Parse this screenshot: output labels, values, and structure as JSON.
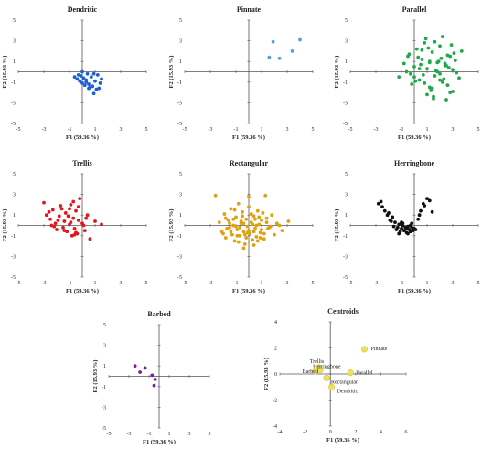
{
  "chart_data": [
    {
      "type": "scatter",
      "title": "Dendritic",
      "xlabel": "F1 (59.36 %)",
      "ylabel": "F2 (15.93 %)",
      "xlim": [
        -5,
        5
      ],
      "ylim": [
        -5,
        5
      ],
      "xticks": [
        "-5",
        "-3",
        "-1",
        "1",
        "3",
        "5"
      ],
      "yticks": [
        "5",
        "3",
        "1",
        "-1",
        "-3",
        "-5"
      ],
      "color": "#1f5fd1",
      "series": [
        {
          "x": [
            -0.6,
            -0.4,
            -0.2,
            0.0,
            0.1,
            0.3,
            0.5,
            0.8,
            1.0,
            1.3,
            1.5,
            1.2,
            0.9,
            0.6,
            0.3,
            0.0,
            -0.3,
            0.2,
            0.5,
            0.9,
            1.1,
            1.4,
            0.7,
            -0.1,
            0.4
          ],
          "y": [
            -0.5,
            -0.7,
            -0.9,
            -1.1,
            -0.6,
            -0.8,
            -1.2,
            -1.4,
            -0.9,
            -1.6,
            -0.7,
            -0.3,
            -0.2,
            -1.5,
            -1.0,
            0.0,
            -0.3,
            -1.3,
            -1.6,
            -2.1,
            -1.7,
            -1.1,
            -0.5,
            -0.4,
            -0.2
          ]
        }
      ]
    },
    {
      "type": "scatter",
      "title": "Pinnate",
      "xlabel": "F1 (59.36 %)",
      "ylabel": "F2 (15.93 %)",
      "xlim": [
        -5,
        5
      ],
      "ylim": [
        -5,
        5
      ],
      "xticks": [
        "-5",
        "-3",
        "-1",
        "1",
        "3",
        "5"
      ],
      "yticks": [
        "5",
        "3",
        "1",
        "-1",
        "-3",
        "-5"
      ],
      "color": "#4aa3df",
      "series": [
        {
          "x": [
            1.6,
            1.9,
            2.4,
            3.4,
            4.0
          ],
          "y": [
            1.4,
            2.9,
            1.3,
            2.0,
            3.1
          ]
        }
      ]
    },
    {
      "type": "scatter",
      "title": "Parallel",
      "xlabel": "F1 (59.36 %)",
      "ylabel": "F2 (15.93 %)",
      "xlim": [
        -5,
        5
      ],
      "ylim": [
        -5,
        5
      ],
      "xticks": [
        "-5",
        "-3",
        "-1",
        "1",
        "3",
        "5"
      ],
      "yticks": [
        "5",
        "3",
        "1",
        "-1",
        "-3",
        "-5"
      ],
      "color": "#1faa4a",
      "series": [
        {
          "x": [
            -1.2,
            -0.8,
            -0.5,
            -0.3,
            0.0,
            0.2,
            0.4,
            0.6,
            0.8,
            1.0,
            1.2,
            1.4,
            1.6,
            1.8,
            2.0,
            2.2,
            2.4,
            2.6,
            2.8,
            3.0,
            3.2,
            3.5,
            3.7,
            -0.6,
            -0.2,
            0.3,
            0.7,
            1.1,
            1.5,
            1.9,
            2.3,
            2.7,
            3.1,
            0.1,
            0.5,
            0.9,
            1.3,
            1.7,
            2.1,
            2.5,
            2.9,
            3.3,
            -0.4,
            0.0,
            0.4,
            0.8,
            1.2,
            1.6,
            2.0,
            2.4,
            2.8,
            1.0,
            1.4,
            1.8,
            2.2,
            2.6,
            0.6,
            1.5,
            2.0,
            2.5,
            3.0,
            1.2
          ],
          "y": [
            -0.5,
            0.8,
            1.5,
            -0.2,
            0.5,
            2.2,
            -0.8,
            1.2,
            2.8,
            0.3,
            -1.5,
            1.9,
            -0.4,
            0.9,
            2.5,
            -1.0,
            0.6,
            1.6,
            -2.0,
            0.2,
            1.1,
            -0.6,
            2.0,
            0.0,
            -1.2,
            1.4,
            -0.3,
            2.3,
            -2.4,
            1.0,
            -0.7,
            0.4,
            1.8,
            -0.9,
            0.7,
            3.2,
            -1.8,
            0.1,
            1.3,
            -2.7,
            2.6,
            -0.1,
            1.7,
            -0.5,
            0.3,
            -1.1,
            1.0,
            2.9,
            -0.2,
            0.8,
            1.5,
            -2.2,
            -1.6,
            0.0,
            3.4,
            -1.3,
            2.1,
            -2.6,
            -0.8,
            0.6,
            -1.9,
            0.9
          ]
        }
      ]
    },
    {
      "type": "scatter",
      "title": "Trellis",
      "xlabel": "F1 (59.36 %)",
      "ylabel": "F2 (15.93 %)",
      "xlim": [
        -5,
        5
      ],
      "ylim": [
        -5,
        5
      ],
      "xticks": [
        "-5",
        "-3",
        "-1",
        "1",
        "3",
        "5"
      ],
      "yticks": [
        "5",
        "3",
        "1",
        "-1",
        "-3",
        "-5"
      ],
      "color": "#e3161b",
      "series": [
        {
          "x": [
            -3.0,
            -2.8,
            -2.5,
            -2.3,
            -2.1,
            -2.0,
            -1.8,
            -1.7,
            -1.5,
            -1.4,
            -1.3,
            -1.2,
            -1.0,
            -0.9,
            -0.8,
            -0.7,
            -0.6,
            -0.5,
            -0.4,
            -0.3,
            -0.2,
            0.0,
            0.2,
            0.4,
            0.6,
            1.0,
            1.5,
            -2.6,
            -2.2,
            -1.9,
            -1.6,
            -1.1,
            -0.9,
            -0.5,
            -0.3,
            0.1,
            -1.4,
            -0.7,
            -1.0,
            -0.6,
            0.3,
            -2.4
          ],
          "y": [
            2.2,
            1.0,
            0.6,
            1.5,
            0.2,
            -0.4,
            0.9,
            1.9,
            -0.2,
            0.4,
            1.2,
            -0.6,
            0.1,
            2.0,
            -1.0,
            0.7,
            -0.3,
            1.4,
            -0.8,
            0.5,
            2.6,
            0.2,
            -0.5,
            1.0,
            -1.3,
            0.4,
            0.1,
            1.3,
            -0.1,
            0.5,
            1.6,
            0.9,
            0.3,
            -0.7,
            1.8,
            0.0,
            -0.5,
            2.3,
            1.6,
            -0.9,
            0.7,
            0.0
          ]
        }
      ]
    },
    {
      "type": "scatter",
      "title": "Rectangular",
      "xlabel": "F1 (59.36 %)",
      "ylabel": "F2 (15.93 %)",
      "xlim": [
        -5,
        5
      ],
      "ylim": [
        -5,
        5
      ],
      "xticks": [
        "-5",
        "-3",
        "-1",
        "1",
        "3",
        "5"
      ],
      "yticks": [
        "5",
        "3",
        "1",
        "-1",
        "-3",
        "-5"
      ],
      "color": "#e0a010",
      "series": [
        {
          "x": [
            -2.6,
            -2.3,
            -2.1,
            -1.9,
            -1.8,
            -1.6,
            -1.5,
            -1.4,
            -1.3,
            -1.2,
            -1.1,
            -1.0,
            -0.9,
            -0.8,
            -0.7,
            -0.6,
            -0.5,
            -0.4,
            -0.3,
            -0.2,
            -0.1,
            0.0,
            0.1,
            0.2,
            0.3,
            0.4,
            0.5,
            0.6,
            0.7,
            0.8,
            0.9,
            1.0,
            1.2,
            1.4,
            1.6,
            1.8,
            2.0,
            2.2,
            2.6,
            3.1,
            -1.7,
            -1.2,
            -0.8,
            -0.4,
            0.0,
            0.4,
            0.8,
            1.2,
            -1.4,
            -1.0,
            -0.6,
            -0.2,
            0.2,
            0.6,
            1.0,
            1.4,
            -0.9,
            -0.5,
            -0.1,
            0.3,
            0.7,
            1.1,
            -1.5,
            -0.3,
            0.5,
            1.5,
            -2.0,
            2.4,
            -0.7,
            0.9,
            0.0,
            -1.1,
            1.3,
            -0.4,
            0.4,
            -1.8,
            1.7
          ],
          "y": [
            2.9,
            0.3,
            -0.6,
            1.1,
            -1.2,
            0.5,
            -0.2,
            1.6,
            -0.9,
            0.0,
            -1.5,
            0.8,
            -0.4,
            2.1,
            -1.0,
            0.2,
            1.3,
            -0.6,
            -1.8,
            0.6,
            -0.1,
            1.8,
            -0.8,
            0.3,
            -1.4,
            0.9,
            -0.3,
            -1.1,
            1.4,
            0.1,
            -0.7,
            0.5,
            -1.3,
            0.7,
            -0.2,
            1.0,
            -0.9,
            0.2,
            -0.5,
            0.4,
            -0.3,
            0.6,
            -1.6,
            0.2,
            -0.5,
            -1.9,
            0.8,
            -0.8,
            -0.6,
            -0.1,
            0.4,
            -1.2,
            1.1,
            0.0,
            -0.4,
            0.3,
            -1.0,
            0.9,
            -0.7,
            0.1,
            -1.5,
            1.2,
            0.2,
            -0.9,
            0.6,
            -0.3,
            -0.8,
            0.0,
            -0.2,
            -1.2,
            2.8,
            1.5,
            2.9,
            -2.2,
            -0.6,
            0.7,
            -0.1
          ]
        }
      ]
    },
    {
      "type": "scatter",
      "title": "Herringbone",
      "xlabel": "F1 (59.36 %)",
      "ylabel": "F2 (15.93 %)",
      "xlim": [
        -5,
        5
      ],
      "ylim": [
        -5,
        5
      ],
      "xticks": [
        "-5",
        "-3",
        "-1",
        "1",
        "3",
        "5"
      ],
      "yticks": [
        "5",
        "3",
        "1",
        "-1",
        "-3",
        "-5"
      ],
      "color": "#111111",
      "series": [
        {
          "x": [
            -2.8,
            -2.6,
            -2.3,
            -2.1,
            -1.9,
            -1.7,
            -1.6,
            -1.5,
            -1.4,
            -1.3,
            -1.2,
            -1.1,
            -1.0,
            -0.9,
            -0.8,
            -0.7,
            -0.6,
            -0.5,
            -0.4,
            -0.3,
            -0.2,
            -0.1,
            0.0,
            0.3,
            0.5,
            0.7,
            1.0,
            1.4,
            -2.5,
            -2.0,
            -1.8,
            -1.2,
            -0.9,
            -0.6,
            -0.3,
            0.1,
            0.4,
            0.8,
            1.2,
            -0.5,
            -1.0,
            -0.2
          ],
          "y": [
            2.1,
            2.3,
            1.4,
            1.0,
            0.5,
            0.8,
            -0.1,
            0.3,
            -0.4,
            -0.2,
            0.1,
            -0.6,
            -0.3,
            0.0,
            -0.5,
            -0.2,
            -0.7,
            -0.1,
            -0.4,
            -0.6,
            -0.2,
            -0.5,
            -0.3,
            0.6,
            1.4,
            2.1,
            2.6,
            1.3,
            1.8,
            1.2,
            0.4,
            -0.8,
            0.2,
            -0.3,
            0.0,
            -0.4,
            1.0,
            1.9,
            2.4,
            -0.8,
            0.3,
            0.2
          ]
        }
      ]
    },
    {
      "type": "scatter",
      "title": "Barbed",
      "xlabel": "F1 (59.36 %)",
      "ylabel": "F2 (15.93 %)",
      "xlim": [
        -5,
        5
      ],
      "ylim": [
        -5,
        5
      ],
      "xticks": [
        "-5",
        "-3",
        "-1",
        "1",
        "3",
        "5"
      ],
      "yticks": [
        "5",
        "3",
        "1",
        "-1",
        "-3",
        "-5"
      ],
      "color": "#7a1fa0",
      "series": [
        {
          "x": [
            -2.4,
            -1.9,
            -1.4,
            -0.7,
            -0.4,
            -0.5
          ],
          "y": [
            1.0,
            0.4,
            0.8,
            0.1,
            -0.3,
            -0.9
          ]
        }
      ]
    },
    {
      "type": "scatter",
      "title": "Centroids",
      "xlabel": "F1 (59.36 %)",
      "ylabel": "F2 (15.93 %)",
      "xlim": [
        -4,
        6
      ],
      "ylim": [
        -4,
        4
      ],
      "xticks": [
        "-4",
        "-2",
        "0",
        "2",
        "4",
        "6"
      ],
      "yticks": [
        "4",
        "2",
        "0",
        "-2",
        "-4"
      ],
      "color": "#f2e05a",
      "series": [
        {
          "x": [
            2.7,
            1.6,
            -0.9,
            -0.8,
            -1.2,
            -0.3,
            0.1
          ],
          "y": [
            1.9,
            0.1,
            0.5,
            0.3,
            0.2,
            -0.3,
            -1.0
          ],
          "labels": [
            "Pinnate",
            "Parallel",
            "Trellis",
            "Herringbone",
            "Barbed",
            "Rectangular",
            "Dendritic"
          ]
        }
      ]
    }
  ]
}
